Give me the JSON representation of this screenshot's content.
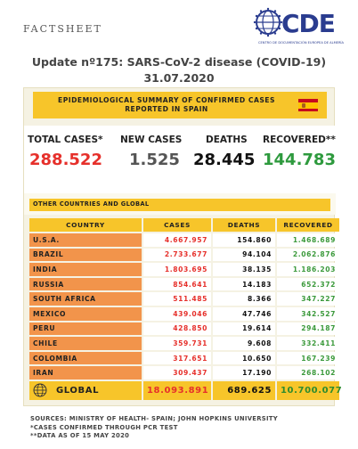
{
  "header": {
    "factsheet": "FACTSHEET",
    "logo_text": "CDE",
    "logo_subtitle": "CENTRO DE DOCUMENTACIÓN EUROPEA DE ALMERÍA",
    "title_line1": "Update nº175: SARS-CoV-2 disease (COVID-19)",
    "title_line2": "31.07.2020"
  },
  "spain": {
    "banner_line1": "EPIDEMIOLOGICAL SUMMARY OF CONFIRMED CASES",
    "banner_line2": "REPORTED IN SPAIN",
    "total_cases_label": "TOTAL CASES*",
    "total_cases": "288.522",
    "new_cases_label": "NEW CASES",
    "new_cases": "1.525",
    "deaths_label": "DEATHS",
    "deaths": "28.445",
    "recovered_label": "RECOVERED**",
    "recovered": "144.783"
  },
  "other": {
    "banner": "OTHER COUNTRIES AND GLOBAL",
    "headers": {
      "country": "COUNTRY",
      "cases": "CASES",
      "deaths": "DEATHS",
      "recovered": "RECOVERED"
    },
    "rows": [
      {
        "country": "U.S.A.",
        "cases": "4.667.957",
        "deaths": "154.860",
        "recovered": "1.468.689"
      },
      {
        "country": "BRAZIL",
        "cases": "2.733.677",
        "deaths": "94.104",
        "recovered": "2.062.876"
      },
      {
        "country": "INDIA",
        "cases": "1.803.695",
        "deaths": "38.135",
        "recovered": "1.186.203"
      },
      {
        "country": "RUSSIA",
        "cases": "854.641",
        "deaths": "14.183",
        "recovered": "652.372"
      },
      {
        "country": "SOUTH AFRICA",
        "cases": "511.485",
        "deaths": "8.366",
        "recovered": "347.227"
      },
      {
        "country": "MEXICO",
        "cases": "439.046",
        "deaths": "47.746",
        "recovered": "342.527"
      },
      {
        "country": "PERU",
        "cases": "428.850",
        "deaths": "19.614",
        "recovered": "294.187"
      },
      {
        "country": "CHILE",
        "cases": "359.731",
        "deaths": "9.608",
        "recovered": "332.411"
      },
      {
        "country": "COLOMBIA",
        "cases": "317.651",
        "deaths": "10.650",
        "recovered": "167.239"
      },
      {
        "country": "IRAN",
        "cases": "309.437",
        "deaths": "17.190",
        "recovered": "268.102"
      }
    ],
    "global": {
      "country": "GLOBAL",
      "cases": "18.093.891",
      "deaths": "689.625",
      "recovered": "10.700.077"
    }
  },
  "notes": {
    "line1": "SOURCES: MINISTRY OF HEALTH- SPAIN; JOHN HOPKINS UNIVERSITY",
    "line2": "*CASES CONFIRMED THROUGH PCR TEST",
    "line3": "**DATA AS OF 15 MAY 2020"
  },
  "colors": {
    "banner_yellow": "#f7c52a",
    "country_orange": "#f2944b",
    "cases_red": "#e6302b",
    "recovered_green": "#3c9a3c",
    "logo_blue": "#2a3c8f",
    "panel_bg": "#f5f2e3"
  },
  "icons": [
    "eu-stars-globe-icon",
    "spain-flag-icon",
    "globe-icon"
  ]
}
